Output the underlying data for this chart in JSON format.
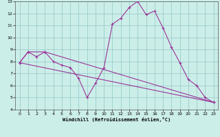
{
  "xlabel": "Windchill (Refroidissement éolien,°C)",
  "bg_color": "#cceee8",
  "grid_color": "#99cccc",
  "line_color": "#993399",
  "xlim": [
    -0.5,
    23.5
  ],
  "ylim": [
    4,
    13
  ],
  "xticks": [
    0,
    1,
    2,
    3,
    4,
    5,
    6,
    7,
    8,
    9,
    10,
    11,
    12,
    13,
    14,
    15,
    16,
    17,
    18,
    19,
    20,
    21,
    22,
    23
  ],
  "yticks": [
    4,
    5,
    6,
    7,
    8,
    9,
    10,
    11,
    12,
    13
  ],
  "series1_x": [
    0,
    1,
    2,
    3,
    4,
    5,
    6,
    7,
    8,
    9,
    10,
    11,
    12,
    13,
    14,
    15,
    16,
    17,
    18,
    19,
    20,
    21,
    22,
    23
  ],
  "series1_y": [
    7.9,
    8.8,
    8.4,
    8.8,
    8.0,
    7.7,
    7.5,
    6.6,
    5.0,
    6.2,
    7.5,
    11.1,
    11.6,
    12.5,
    13.0,
    11.9,
    12.2,
    10.8,
    9.2,
    7.9,
    6.5,
    6.0,
    5.0,
    4.6
  ],
  "series2_x": [
    0,
    23
  ],
  "series2_y": [
    7.9,
    4.6
  ],
  "series3_x": [
    0,
    1,
    3,
    23
  ],
  "series3_y": [
    7.9,
    8.8,
    8.8,
    4.6
  ]
}
